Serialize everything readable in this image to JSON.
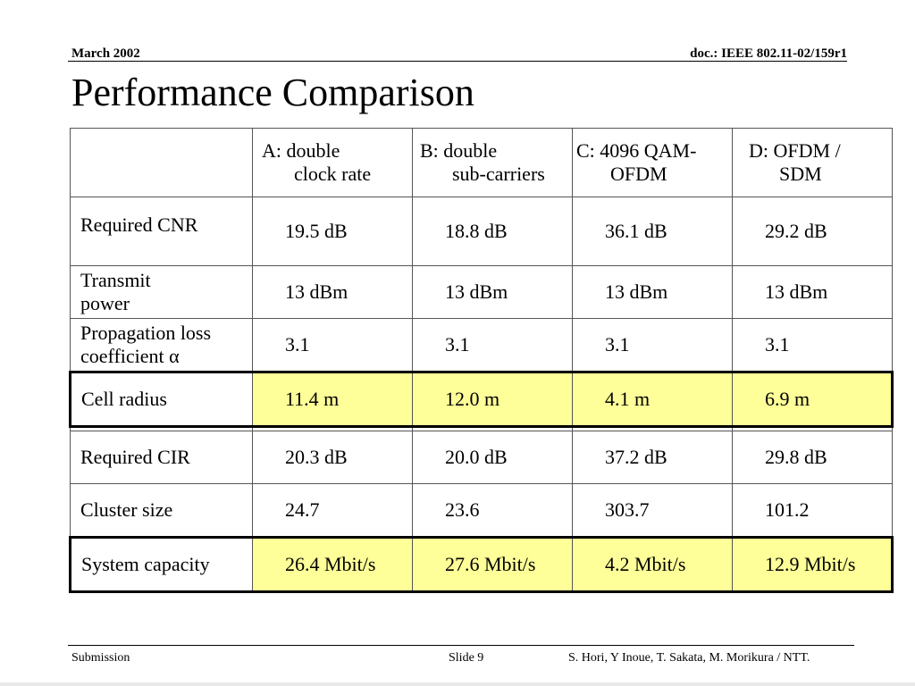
{
  "header": {
    "date": "March  2002",
    "doc": "doc.: IEEE 802.11-02/159r1"
  },
  "title": "Performance Comparison",
  "table": {
    "columns": [
      {
        "line1": "A: double",
        "line2": "clock rate"
      },
      {
        "line1": "B: double",
        "line2": "sub-carriers"
      },
      {
        "line1": "C: 4096 QAM-",
        "line2": "OFDM"
      },
      {
        "line1": "D: OFDM /",
        "line2": "SDM"
      }
    ],
    "rows": {
      "cnr": {
        "label": "Required CNR",
        "values": [
          "19.5 dB",
          "18.8 dB",
          "36.1 dB",
          "29.2 dB"
        ]
      },
      "power": {
        "label_line1": "Transmit",
        "label_line2": "power",
        "values": [
          "13 dBm",
          "13 dBm",
          "13 dBm",
          "13 dBm"
        ]
      },
      "prop": {
        "label_line1": "Propagation loss",
        "label_line2": "coefficient α",
        "values": [
          "3.1",
          "3.1",
          "3.1",
          "3.1"
        ]
      },
      "cell": {
        "label": "Cell radius",
        "values": [
          "11.4 m",
          "12.0 m",
          "4.1 m",
          "6.9 m"
        ]
      },
      "cir": {
        "label": "Required CIR",
        "values": [
          "20.3 dB",
          "20.0 dB",
          "37.2 dB",
          "29.8 dB"
        ]
      },
      "cluster": {
        "label": "Cluster size",
        "values": [
          "24.7",
          "23.6",
          "303.7",
          "101.2"
        ]
      },
      "capacity": {
        "label": "System capacity",
        "values": [
          "26.4 Mbit/s",
          "27.6 Mbit/s",
          "4.2 Mbit/s",
          "12.9 Mbit/s"
        ]
      }
    }
  },
  "footer": {
    "left": "Submission",
    "slide": "Slide 9",
    "authors": "S. Hori, Y Inoue, T. Sakata, M. Morikura / NTT."
  },
  "colors": {
    "highlight": "#ffff99"
  }
}
